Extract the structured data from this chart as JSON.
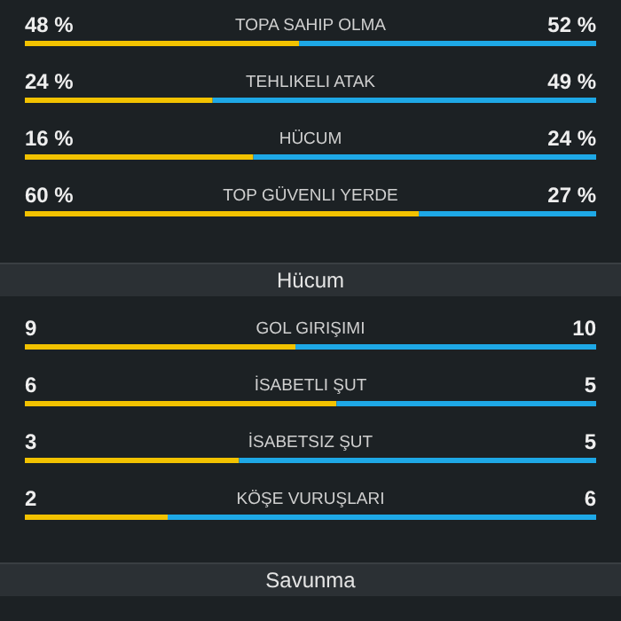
{
  "chart_data": [
    {
      "type": "bar",
      "orientation": "horizontal",
      "stacked": true,
      "tick_labels": false,
      "categories": [
        "TOPA SAHIP OLMA"
      ],
      "xlim": [
        0,
        100
      ],
      "series": [
        {
          "color": "#f2c200",
          "values": [
            48
          ],
          "value_labels": [
            "48 %"
          ]
        },
        {
          "color": "#1ea8e6",
          "values": [
            52
          ],
          "value_labels": [
            "52 %"
          ]
        }
      ]
    },
    {
      "type": "bar",
      "orientation": "horizontal",
      "stacked": true,
      "tick_labels": false,
      "categories": [
        "TEHLIKELI ATAK"
      ],
      "xlim": [
        0,
        73
      ],
      "series": [
        {
          "color": "#f2c200",
          "values": [
            24
          ],
          "value_labels": [
            "24 %"
          ]
        },
        {
          "color": "#1ea8e6",
          "values": [
            49
          ],
          "value_labels": [
            "49 %"
          ]
        }
      ]
    },
    {
      "type": "bar",
      "orientation": "horizontal",
      "stacked": true,
      "tick_labels": false,
      "categories": [
        "HÜCUM"
      ],
      "xlim": [
        0,
        40
      ],
      "series": [
        {
          "color": "#f2c200",
          "values": [
            16
          ],
          "value_labels": [
            "16 %"
          ]
        },
        {
          "color": "#1ea8e6",
          "values": [
            24
          ],
          "value_labels": [
            "24 %"
          ]
        }
      ]
    },
    {
      "type": "bar",
      "orientation": "horizontal",
      "stacked": true,
      "tick_labels": false,
      "categories": [
        "TOP GÜVENLI YERDE"
      ],
      "xlim": [
        0,
        87
      ],
      "series": [
        {
          "color": "#f2c200",
          "values": [
            60
          ],
          "value_labels": [
            "60 %"
          ]
        },
        {
          "color": "#1ea8e6",
          "values": [
            27
          ],
          "value_labels": [
            "27 %"
          ]
        }
      ]
    },
    {
      "type": "other",
      "title": "Hücum"
    },
    {
      "type": "bar",
      "orientation": "horizontal",
      "stacked": true,
      "tick_labels": false,
      "categories": [
        "GOL GIRIŞIMI"
      ],
      "xlim": [
        0,
        19
      ],
      "data_labels": true,
      "series": [
        {
          "color": "#f2c200",
          "values": [
            9
          ]
        },
        {
          "color": "#1ea8e6",
          "values": [
            10
          ]
        }
      ]
    },
    {
      "type": "bar",
      "orientation": "horizontal",
      "stacked": true,
      "tick_labels": false,
      "categories": [
        "İSABETLI ŞUT"
      ],
      "xlim": [
        0,
        11
      ],
      "data_labels": true,
      "series": [
        {
          "color": "#f2c200",
          "values": [
            6
          ]
        },
        {
          "color": "#1ea8e6",
          "values": [
            5
          ]
        }
      ]
    },
    {
      "type": "bar",
      "orientation": "horizontal",
      "stacked": true,
      "tick_labels": false,
      "categories": [
        "İSABETSIZ ŞUT"
      ],
      "xlim": [
        0,
        8
      ],
      "data_labels": true,
      "series": [
        {
          "color": "#f2c200",
          "values": [
            3
          ]
        },
        {
          "color": "#1ea8e6",
          "values": [
            5
          ]
        }
      ]
    },
    {
      "type": "bar",
      "orientation": "horizontal",
      "stacked": true,
      "tick_labels": false,
      "categories": [
        "KÖŞE VURUŞLARI"
      ],
      "xlim": [
        0,
        8
      ],
      "data_labels": true,
      "series": [
        {
          "color": "#f2c200",
          "values": [
            2
          ]
        },
        {
          "color": "#1ea8e6",
          "values": [
            6
          ]
        }
      ]
    },
    {
      "type": "other",
      "title": "Savunma"
    }
  ]
}
